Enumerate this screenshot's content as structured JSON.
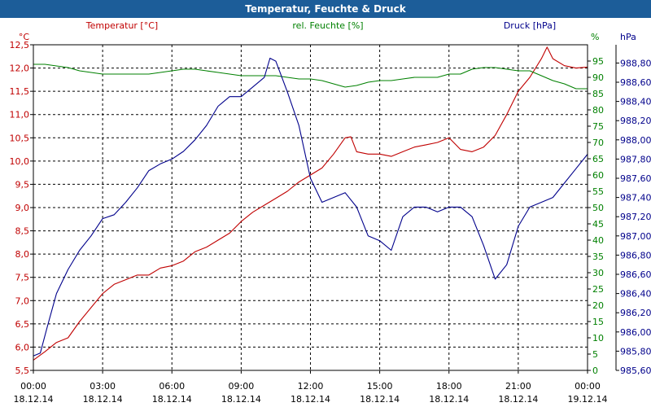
{
  "window": {
    "title": "Temperatur, Feuchte & Druck"
  },
  "colors": {
    "temperature": "#c00000",
    "humidity": "#008000",
    "pressure": "#00008b",
    "titlebar": "#1c5d99",
    "grid": "#000000"
  },
  "chart_data": {
    "type": "line",
    "title": "Temperatur, Feuchte & Druck",
    "grid": true,
    "x_ticks": [
      {
        "time": "00:00",
        "date": "18.12.14"
      },
      {
        "time": "03:00",
        "date": "18.12.14"
      },
      {
        "time": "06:00",
        "date": "18.12.14"
      },
      {
        "time": "09:00",
        "date": "18.12.14"
      },
      {
        "time": "12:00",
        "date": "18.12.14"
      },
      {
        "time": "15:00",
        "date": "18.12.14"
      },
      {
        "time": "18:00",
        "date": "18.12.14"
      },
      {
        "time": "21:00",
        "date": "18.12.14"
      },
      {
        "time": "00:00",
        "date": "19.12.14"
      }
    ],
    "xlim": [
      0,
      24
    ],
    "axes": {
      "temperature": {
        "label": "Temperatur [°C]",
        "unit": "°C",
        "ylim": [
          5.5,
          12.5
        ],
        "ticks": [
          "5,5",
          "6,0",
          "6,5",
          "7,0",
          "7,5",
          "8,0",
          "8,5",
          "9,0",
          "9,5",
          "10,0",
          "10,5",
          "11,0",
          "11,5",
          "12,0",
          "12,5"
        ]
      },
      "humidity": {
        "label": "rel. Feuchte [%]",
        "unit": "%",
        "ylim": [
          0,
          100
        ],
        "ticks": [
          "0",
          "5",
          "10",
          "15",
          "20",
          "25",
          "30",
          "35",
          "40",
          "45",
          "50",
          "55",
          "60",
          "65",
          "70",
          "75",
          "80",
          "85",
          "90",
          "95"
        ]
      },
      "pressure": {
        "label": "Druck [hPa]",
        "unit": "hPa",
        "ylim": [
          985.6,
          988.99
        ],
        "ticks": [
          "985,60",
          "985,80",
          "986,00",
          "986,20",
          "986,40",
          "986,60",
          "986,80",
          "987,00",
          "987,20",
          "987,40",
          "987,60",
          "987,80",
          "988,00",
          "988,20",
          "988,40",
          "988,60",
          "988,80"
        ]
      }
    },
    "series": [
      {
        "name": "Temperatur",
        "axis": "temperature",
        "color": "#c00000",
        "points": [
          [
            0,
            5.72
          ],
          [
            0.5,
            5.9
          ],
          [
            1,
            6.1
          ],
          [
            1.5,
            6.2
          ],
          [
            2,
            6.55
          ],
          [
            2.5,
            6.85
          ],
          [
            3,
            7.15
          ],
          [
            3.5,
            7.35
          ],
          [
            4,
            7.45
          ],
          [
            4.5,
            7.55
          ],
          [
            5,
            7.55
          ],
          [
            5.5,
            7.7
          ],
          [
            6,
            7.75
          ],
          [
            6.5,
            7.85
          ],
          [
            7,
            8.05
          ],
          [
            7.5,
            8.15
          ],
          [
            8,
            8.3
          ],
          [
            8.5,
            8.45
          ],
          [
            9,
            8.7
          ],
          [
            9.5,
            8.9
          ],
          [
            10,
            9.05
          ],
          [
            10.5,
            9.2
          ],
          [
            11,
            9.35
          ],
          [
            11.5,
            9.55
          ],
          [
            12,
            9.7
          ],
          [
            12.5,
            9.85
          ],
          [
            13,
            10.15
          ],
          [
            13.5,
            10.5
          ],
          [
            13.75,
            10.52
          ],
          [
            14,
            10.2
          ],
          [
            14.5,
            10.15
          ],
          [
            15,
            10.15
          ],
          [
            15.5,
            10.1
          ],
          [
            16,
            10.2
          ],
          [
            16.5,
            10.3
          ],
          [
            17,
            10.35
          ],
          [
            17.5,
            10.4
          ],
          [
            18,
            10.5
          ],
          [
            18.5,
            10.25
          ],
          [
            19,
            10.2
          ],
          [
            19.5,
            10.3
          ],
          [
            20,
            10.55
          ],
          [
            20.5,
            11.0
          ],
          [
            21,
            11.5
          ],
          [
            21.5,
            11.8
          ],
          [
            22,
            12.2
          ],
          [
            22.25,
            12.45
          ],
          [
            22.5,
            12.2
          ],
          [
            23,
            12.05
          ],
          [
            23.5,
            12.0
          ],
          [
            24,
            12.02
          ]
        ]
      },
      {
        "name": "rel. Feuchte",
        "axis": "humidity",
        "color": "#008000",
        "points": [
          [
            0,
            94
          ],
          [
            0.5,
            94
          ],
          [
            1,
            93.5
          ],
          [
            1.5,
            93
          ],
          [
            2,
            92
          ],
          [
            2.5,
            91.5
          ],
          [
            3,
            91
          ],
          [
            3.5,
            91
          ],
          [
            4,
            91
          ],
          [
            4.5,
            91
          ],
          [
            5,
            91
          ],
          [
            5.5,
            91.5
          ],
          [
            6,
            92
          ],
          [
            6.5,
            92.5
          ],
          [
            7,
            92.5
          ],
          [
            7.5,
            92
          ],
          [
            8,
            91.5
          ],
          [
            8.5,
            91
          ],
          [
            9,
            90.5
          ],
          [
            9.5,
            90.5
          ],
          [
            10,
            90.5
          ],
          [
            10.5,
            90.5
          ],
          [
            11,
            90
          ],
          [
            11.5,
            89.5
          ],
          [
            12,
            89.5
          ],
          [
            12.5,
            89
          ],
          [
            13,
            88
          ],
          [
            13.5,
            87
          ],
          [
            14,
            87.5
          ],
          [
            14.5,
            88.5
          ],
          [
            15,
            89
          ],
          [
            15.5,
            89
          ],
          [
            16,
            89.5
          ],
          [
            16.5,
            90
          ],
          [
            17,
            90
          ],
          [
            17.5,
            90
          ],
          [
            18,
            91
          ],
          [
            18.5,
            91
          ],
          [
            19,
            92.5
          ],
          [
            19.5,
            93
          ],
          [
            20,
            93
          ],
          [
            20.5,
            92.5
          ],
          [
            21,
            92
          ],
          [
            21.5,
            92
          ],
          [
            22,
            90.5
          ],
          [
            22.5,
            89
          ],
          [
            23,
            88
          ],
          [
            23.5,
            86.5
          ],
          [
            24,
            86.5
          ]
        ]
      },
      {
        "name": "Druck",
        "axis": "pressure",
        "color": "#00008b",
        "points": [
          [
            0,
            985.75
          ],
          [
            0.3,
            985.78
          ],
          [
            0.6,
            986.05
          ],
          [
            1,
            986.4
          ],
          [
            1.5,
            986.65
          ],
          [
            2,
            986.85
          ],
          [
            2.5,
            987.0
          ],
          [
            3,
            987.18
          ],
          [
            3.5,
            987.22
          ],
          [
            4,
            987.35
          ],
          [
            4.5,
            987.5
          ],
          [
            5,
            987.68
          ],
          [
            5.5,
            987.75
          ],
          [
            6,
            987.8
          ],
          [
            6.5,
            987.88
          ],
          [
            7,
            988.0
          ],
          [
            7.5,
            988.15
          ],
          [
            8,
            988.35
          ],
          [
            8.5,
            988.45
          ],
          [
            9,
            988.45
          ],
          [
            9.5,
            988.55
          ],
          [
            10,
            988.65
          ],
          [
            10.25,
            988.85
          ],
          [
            10.5,
            988.82
          ],
          [
            11,
            988.5
          ],
          [
            11.5,
            988.15
          ],
          [
            12,
            987.6
          ],
          [
            12.5,
            987.35
          ],
          [
            13,
            987.4
          ],
          [
            13.5,
            987.45
          ],
          [
            14,
            987.3
          ],
          [
            14.5,
            987.0
          ],
          [
            15,
            986.95
          ],
          [
            15.5,
            986.85
          ],
          [
            16,
            987.2
          ],
          [
            16.5,
            987.3
          ],
          [
            17,
            987.3
          ],
          [
            17.5,
            987.25
          ],
          [
            18,
            987.3
          ],
          [
            18.5,
            987.3
          ],
          [
            19,
            987.2
          ],
          [
            19.5,
            986.9
          ],
          [
            20,
            986.55
          ],
          [
            20.5,
            986.7
          ],
          [
            21,
            987.1
          ],
          [
            21.5,
            987.3
          ],
          [
            22,
            987.35
          ],
          [
            22.5,
            987.4
          ],
          [
            23,
            987.55
          ],
          [
            23.5,
            987.7
          ],
          [
            24,
            987.85
          ]
        ]
      }
    ]
  }
}
